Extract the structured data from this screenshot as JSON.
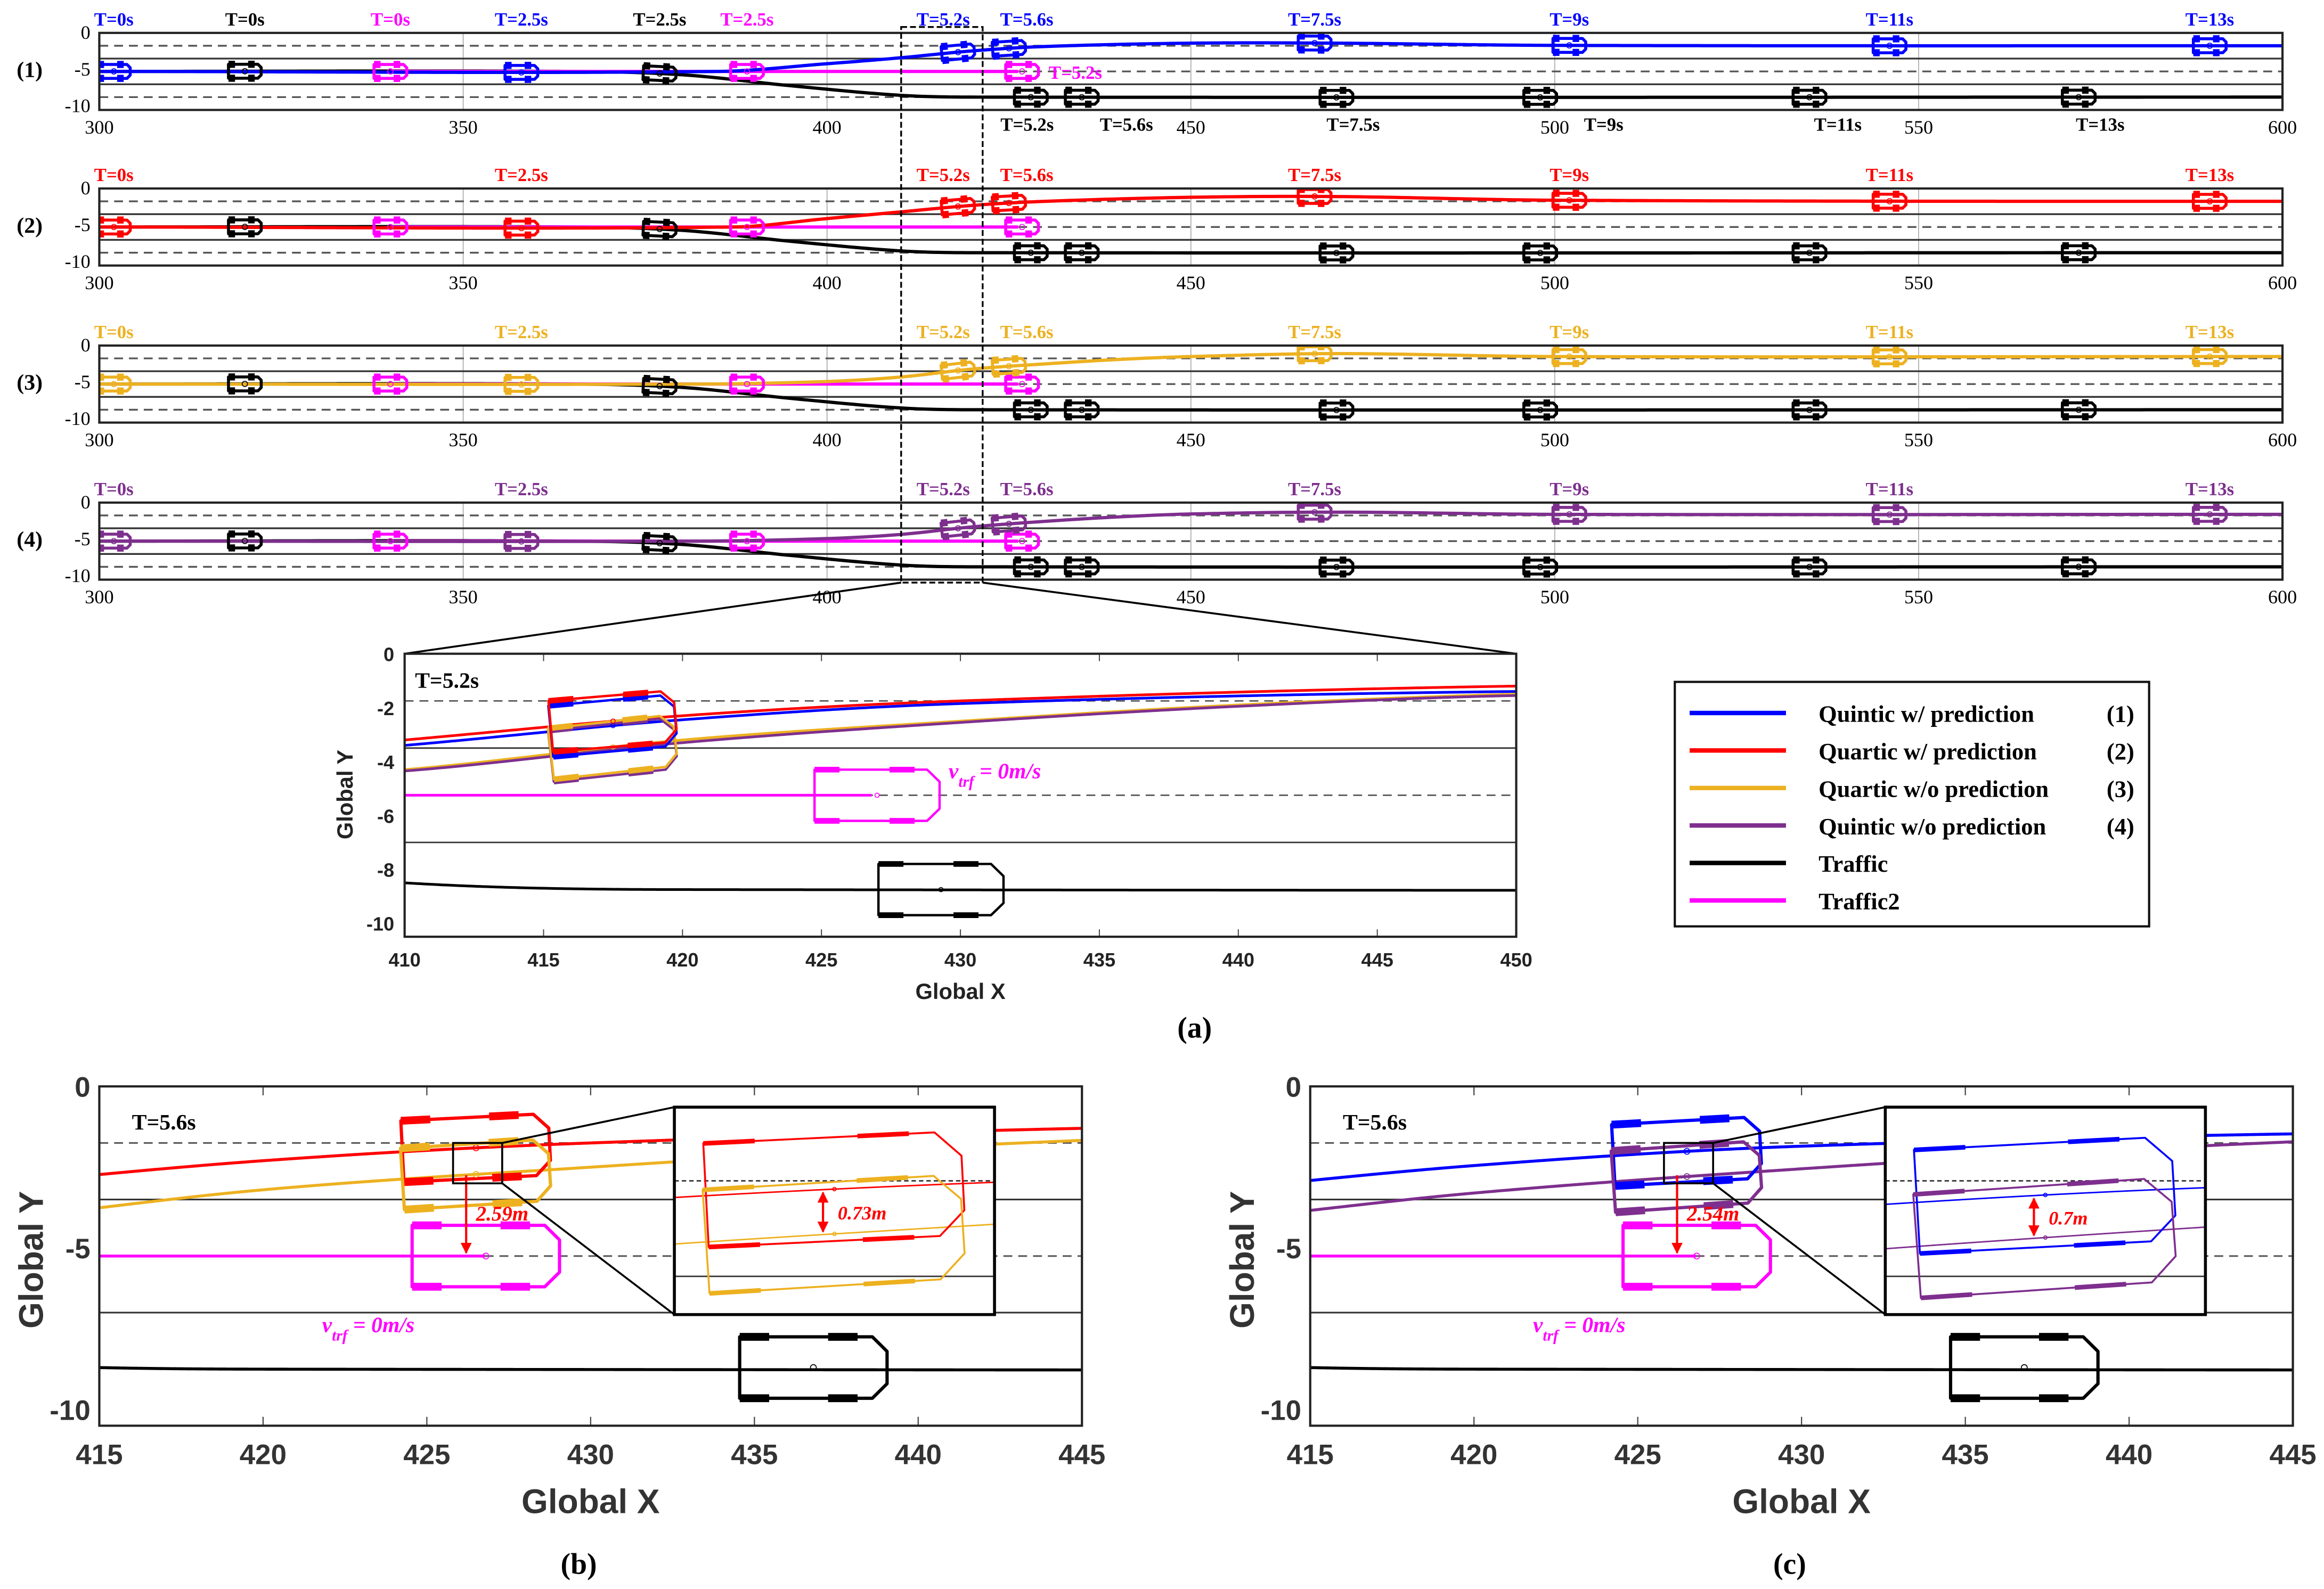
{
  "chart_data": {
    "type": "line",
    "series": [
      {
        "key": "quintic_w",
        "name": "Quintic w/ prediction",
        "tag": "(1)",
        "color": "#0000ff",
        "points": [
          [
            300,
            -5.25
          ],
          [
            385,
            -5.25
          ],
          [
            400,
            -4.2
          ],
          [
            410,
            -3.4
          ],
          [
            420,
            -2.45
          ],
          [
            430,
            -1.85
          ],
          [
            450,
            -1.4
          ],
          [
            470,
            -1.4
          ],
          [
            500,
            -1.7
          ],
          [
            600,
            -1.75
          ]
        ]
      },
      {
        "key": "quartic_w",
        "name": "Quartic w/ prediction",
        "tag": "(2)",
        "color": "#ff0000",
        "points": [
          [
            300,
            -5.25
          ],
          [
            387,
            -5.25
          ],
          [
            400,
            -4.1
          ],
          [
            410,
            -3.2
          ],
          [
            420,
            -2.3
          ],
          [
            430,
            -1.75
          ],
          [
            450,
            -1.2
          ],
          [
            470,
            -1.1
          ],
          [
            500,
            -1.6
          ],
          [
            600,
            -1.75
          ]
        ]
      },
      {
        "key": "quartic_wo",
        "name": "Quartic w/o prediction",
        "tag": "(3)",
        "color": "#edb120",
        "points": [
          [
            300,
            -5.25
          ],
          [
            382,
            -5.25
          ],
          [
            400,
            -4.9
          ],
          [
            410,
            -4.3
          ],
          [
            420,
            -3.2
          ],
          [
            430,
            -2.5
          ],
          [
            440,
            -1.9
          ],
          [
            450,
            -1.5
          ],
          [
            470,
            -1.1
          ],
          [
            500,
            -1.5
          ],
          [
            600,
            -1.5
          ]
        ]
      },
      {
        "key": "quintic_wo",
        "name": "Quintic w/o prediction",
        "tag": "(4)",
        "color": "#7e2f8e",
        "points": [
          [
            300,
            -5.25
          ],
          [
            382,
            -5.25
          ],
          [
            400,
            -4.9
          ],
          [
            410,
            -4.35
          ],
          [
            420,
            -3.3
          ],
          [
            430,
            -2.55
          ],
          [
            440,
            -1.95
          ],
          [
            450,
            -1.55
          ],
          [
            470,
            -1.3
          ],
          [
            500,
            -1.6
          ],
          [
            600,
            -1.6
          ]
        ]
      },
      {
        "key": "traffic",
        "name": "Traffic",
        "tag": "",
        "color": "#000000",
        "points": [
          [
            300,
            -5.25
          ],
          [
            365,
            -5.25
          ],
          [
            380,
            -5.7
          ],
          [
            395,
            -7.2
          ],
          [
            410,
            -8.5
          ],
          [
            420,
            -8.75
          ],
          [
            600,
            -8.75
          ]
        ]
      },
      {
        "key": "traffic2",
        "name": "Traffic2",
        "tag": "",
        "color": "#ff00ff",
        "points": [
          [
            340,
            -5.25
          ],
          [
            426.8,
            -5.25
          ]
        ]
      }
    ],
    "overview": {
      "caption": "(a)",
      "xlim": [
        300,
        600
      ],
      "ylim": [
        -10.5,
        0
      ],
      "xticks": [
        300,
        350,
        400,
        450,
        500,
        550,
        600
      ],
      "yticks": [
        0,
        -5,
        -10
      ],
      "lane_solid": [
        -3.5,
        -7
      ],
      "lane_dashed": [
        -1.75,
        -5.25,
        -8.75
      ],
      "panels": [
        {
          "label": "(1)",
          "ego": "quintic_w",
          "all_labels": true
        },
        {
          "label": "(2)",
          "ego": "quartic_w",
          "all_labels": false
        },
        {
          "label": "(3)",
          "ego": "quartic_wo",
          "all_labels": false
        },
        {
          "label": "(4)",
          "ego": "quintic_wo",
          "all_labels": false
        }
      ],
      "ego_snapshots": [
        {
          "t": "T=0s",
          "x": 302
        },
        {
          "t": "T=2.5s",
          "x": 358
        },
        {
          "t": "T=5.2s",
          "x": 418
        },
        {
          "t": "T=5.6s",
          "x": 425
        },
        {
          "t": "T=7.5s",
          "x": 467
        },
        {
          "t": "T=9s",
          "x": 502
        },
        {
          "t": "T=11s",
          "x": 546
        },
        {
          "t": "T=13s",
          "x": 590
        }
      ],
      "traffic_snapshots": [
        {
          "t": "T=0s",
          "x": 320
        },
        {
          "t": "T=2.5s",
          "x": 377
        },
        {
          "t": "T=5.2s",
          "x": 428
        },
        {
          "t": "T=5.6s",
          "x": 435
        },
        {
          "t": "T=7.5s",
          "x": 470
        },
        {
          "t": "T=9s",
          "x": 498
        },
        {
          "t": "T=11s",
          "x": 535
        },
        {
          "t": "T=13s",
          "x": 572
        }
      ],
      "traffic2_snapshots": [
        {
          "t": "T=0s",
          "x": 340
        },
        {
          "t": "T=2.5s",
          "x": 389
        },
        {
          "t": "T=5.2s",
          "x": 426.8
        }
      ]
    },
    "zoom_a": {
      "title": "T=5.2s",
      "xlim": [
        410,
        450
      ],
      "ylim": [
        -10.5,
        0
      ],
      "xticks": [
        410,
        415,
        420,
        425,
        430,
        435,
        440,
        445,
        450
      ],
      "yticks": [
        0,
        -2,
        -4,
        -6,
        -8,
        -10
      ],
      "xlabel": "Global X",
      "ylabel": "Global Y",
      "series": [
        "quartic_w",
        "quintic_w",
        "quartic_wo",
        "quintic_wo"
      ],
      "ego_x": 417.5,
      "traffic2_x": 427,
      "traffic_x": 429.3,
      "annotation": {
        "symbol": "v",
        "subscript": "trf",
        "value": " = 0m/s"
      }
    },
    "panels_bc": [
      {
        "caption": "(b)",
        "title": "T=5.6s",
        "series": [
          "quartic_w",
          "quartic_wo"
        ],
        "gap_label": "2.59m",
        "inset_gap_label": "0.73m"
      },
      {
        "caption": "(c)",
        "title": "T=5.6s",
        "series": [
          "quintic_w",
          "quintic_wo"
        ],
        "gap_label": "2.54m",
        "inset_gap_label": "0.7m"
      }
    ],
    "bc_common": {
      "xlim": [
        415,
        445
      ],
      "ylim": [
        -10.5,
        0
      ],
      "xticks": [
        415,
        420,
        425,
        430,
        435,
        440,
        445
      ],
      "yticks": [
        0,
        -5,
        -10
      ],
      "xlabel": "Global X",
      "ylabel": "Global Y",
      "ego_x": 426.5,
      "traffic2_x": 426.8,
      "traffic_x": 436.8,
      "annotation": {
        "symbol": "v",
        "subscript": "trf",
        "value": " = 0m/s"
      }
    },
    "legend": {
      "placement": "right of zoom panel (a)"
    }
  }
}
